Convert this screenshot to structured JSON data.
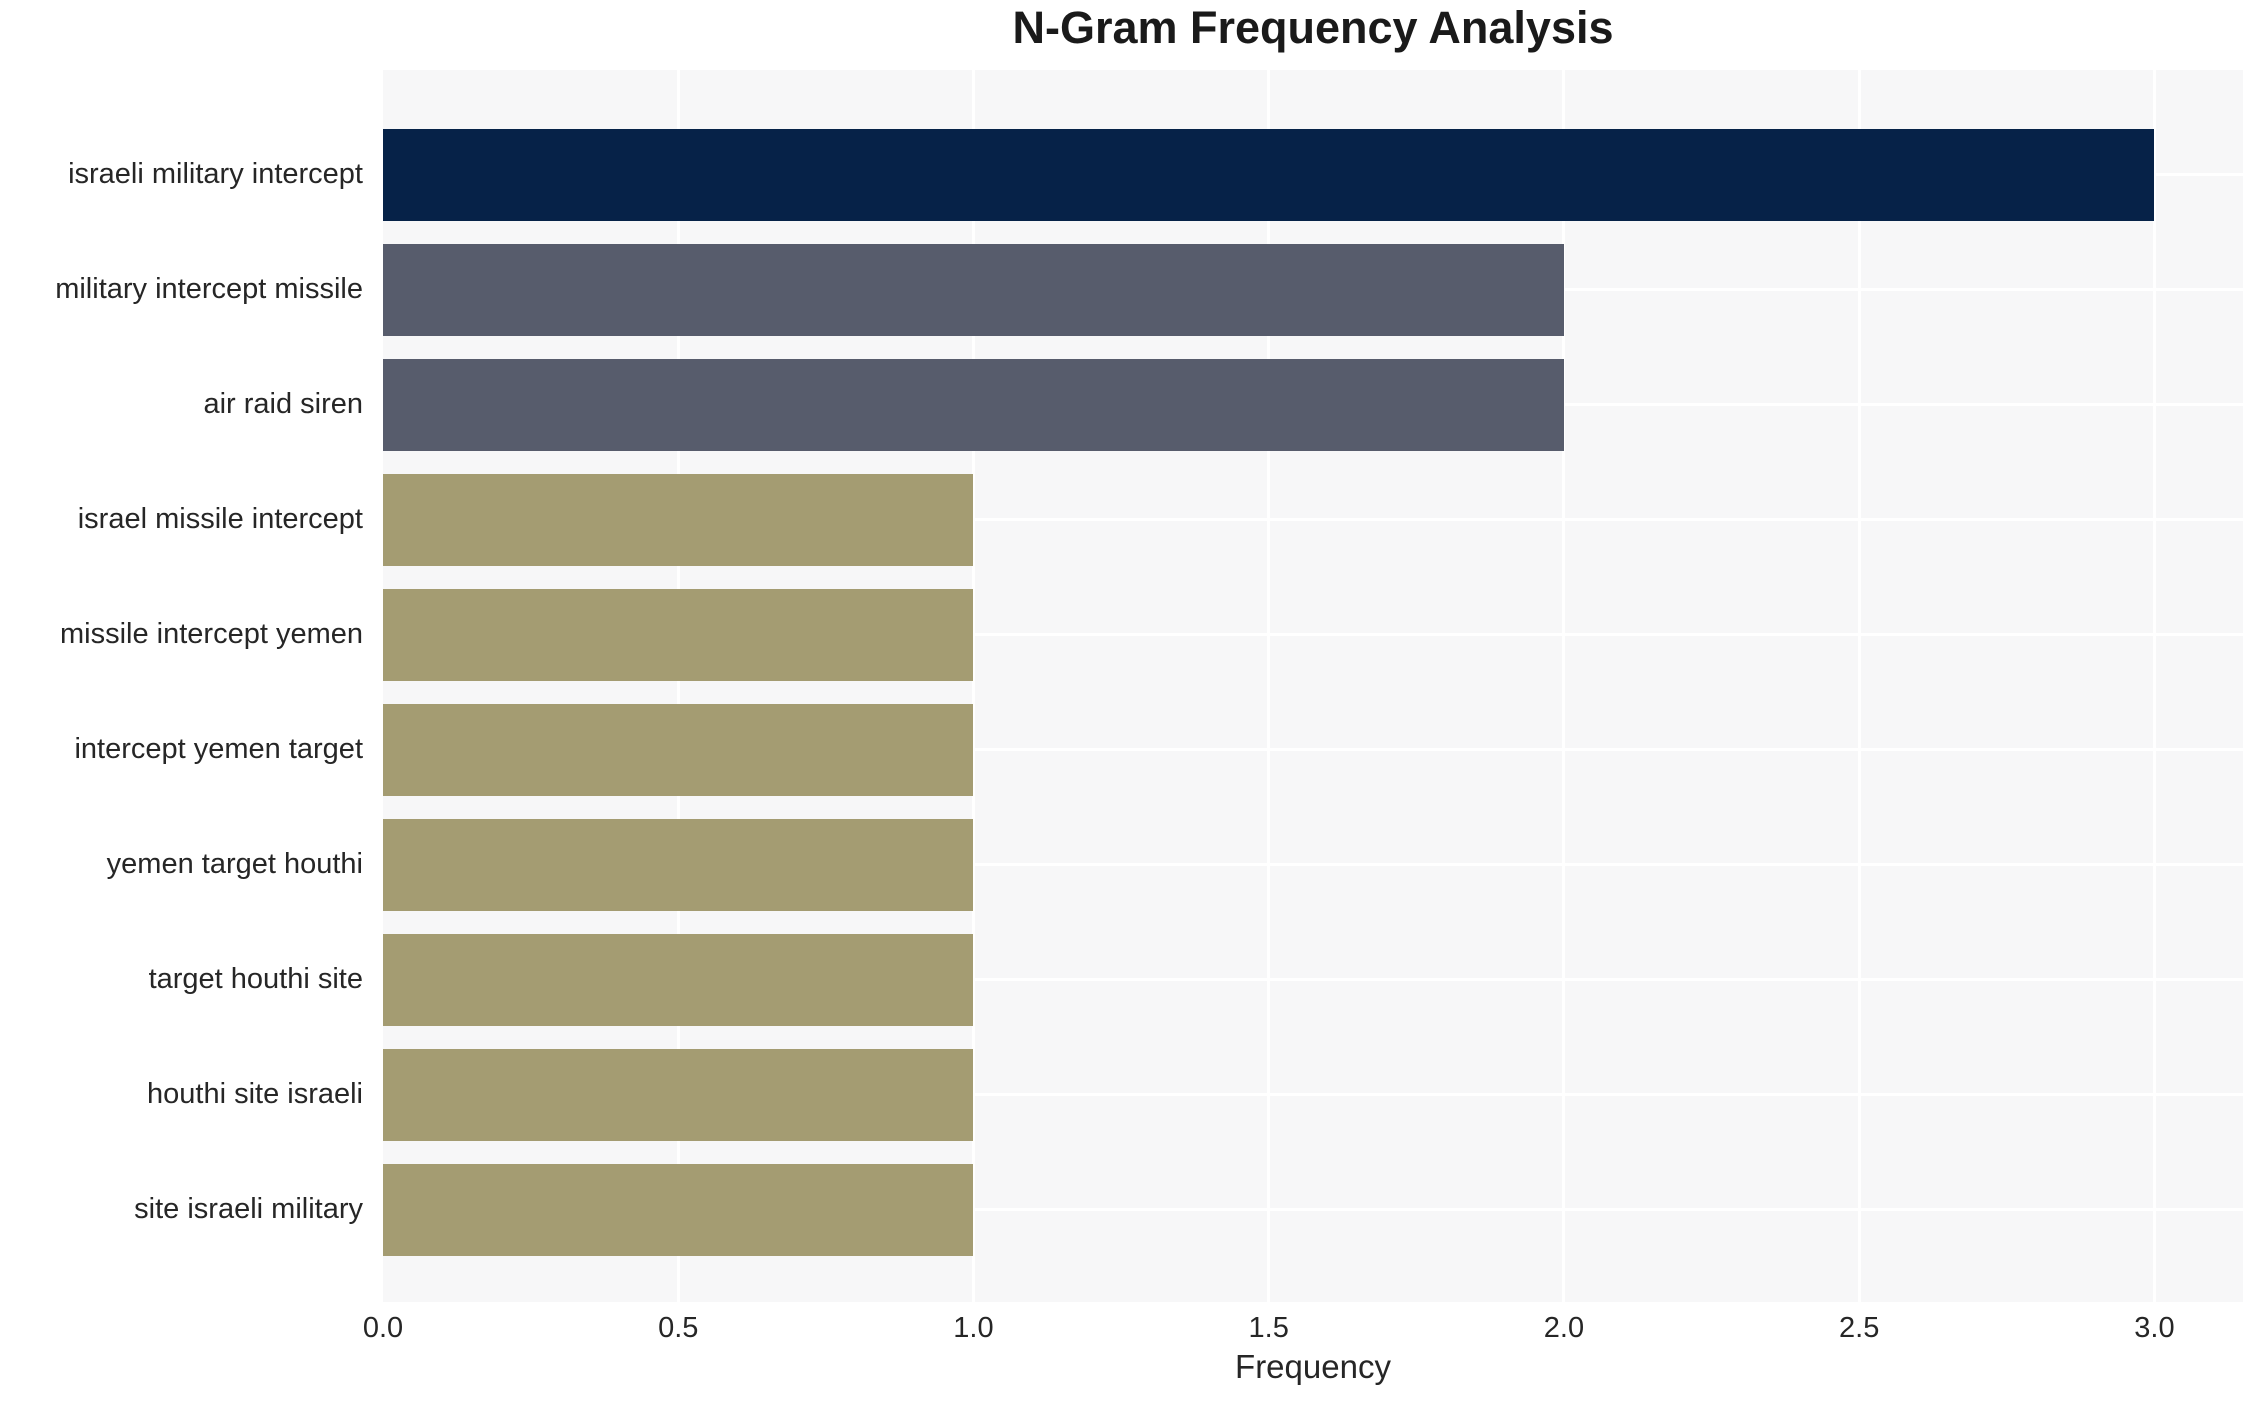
{
  "chart_data": {
    "type": "bar",
    "orientation": "horizontal",
    "title": "N-Gram Frequency Analysis",
    "xlabel": "Frequency",
    "ylabel": "",
    "categories": [
      "israeli military intercept",
      "military intercept missile",
      "air raid siren",
      "israel missile intercept",
      "missile intercept yemen",
      "intercept yemen target",
      "yemen target houthi",
      "target houthi site",
      "houthi site israeli",
      "site israeli military"
    ],
    "values": [
      3,
      2,
      2,
      1,
      1,
      1,
      1,
      1,
      1,
      1
    ],
    "bar_colors": [
      "#062248",
      "#575c6c",
      "#575c6c",
      "#a49c72",
      "#a49c72",
      "#a49c72",
      "#a49c72",
      "#a49c72",
      "#a49c72",
      "#a49c72"
    ],
    "xlim": [
      0,
      3.15
    ],
    "xticks": [
      0.0,
      0.5,
      1.0,
      1.5,
      2.0,
      2.5,
      3.0
    ],
    "xtick_labels": [
      "0.0",
      "0.5",
      "1.0",
      "1.5",
      "2.0",
      "2.5",
      "3.0"
    ],
    "grid": true,
    "legend": "none",
    "colors": {
      "plot_background": "#f7f7f8",
      "grid_line": "#ffffff",
      "text": "#262626",
      "title_text": "#1a1a1a"
    }
  }
}
